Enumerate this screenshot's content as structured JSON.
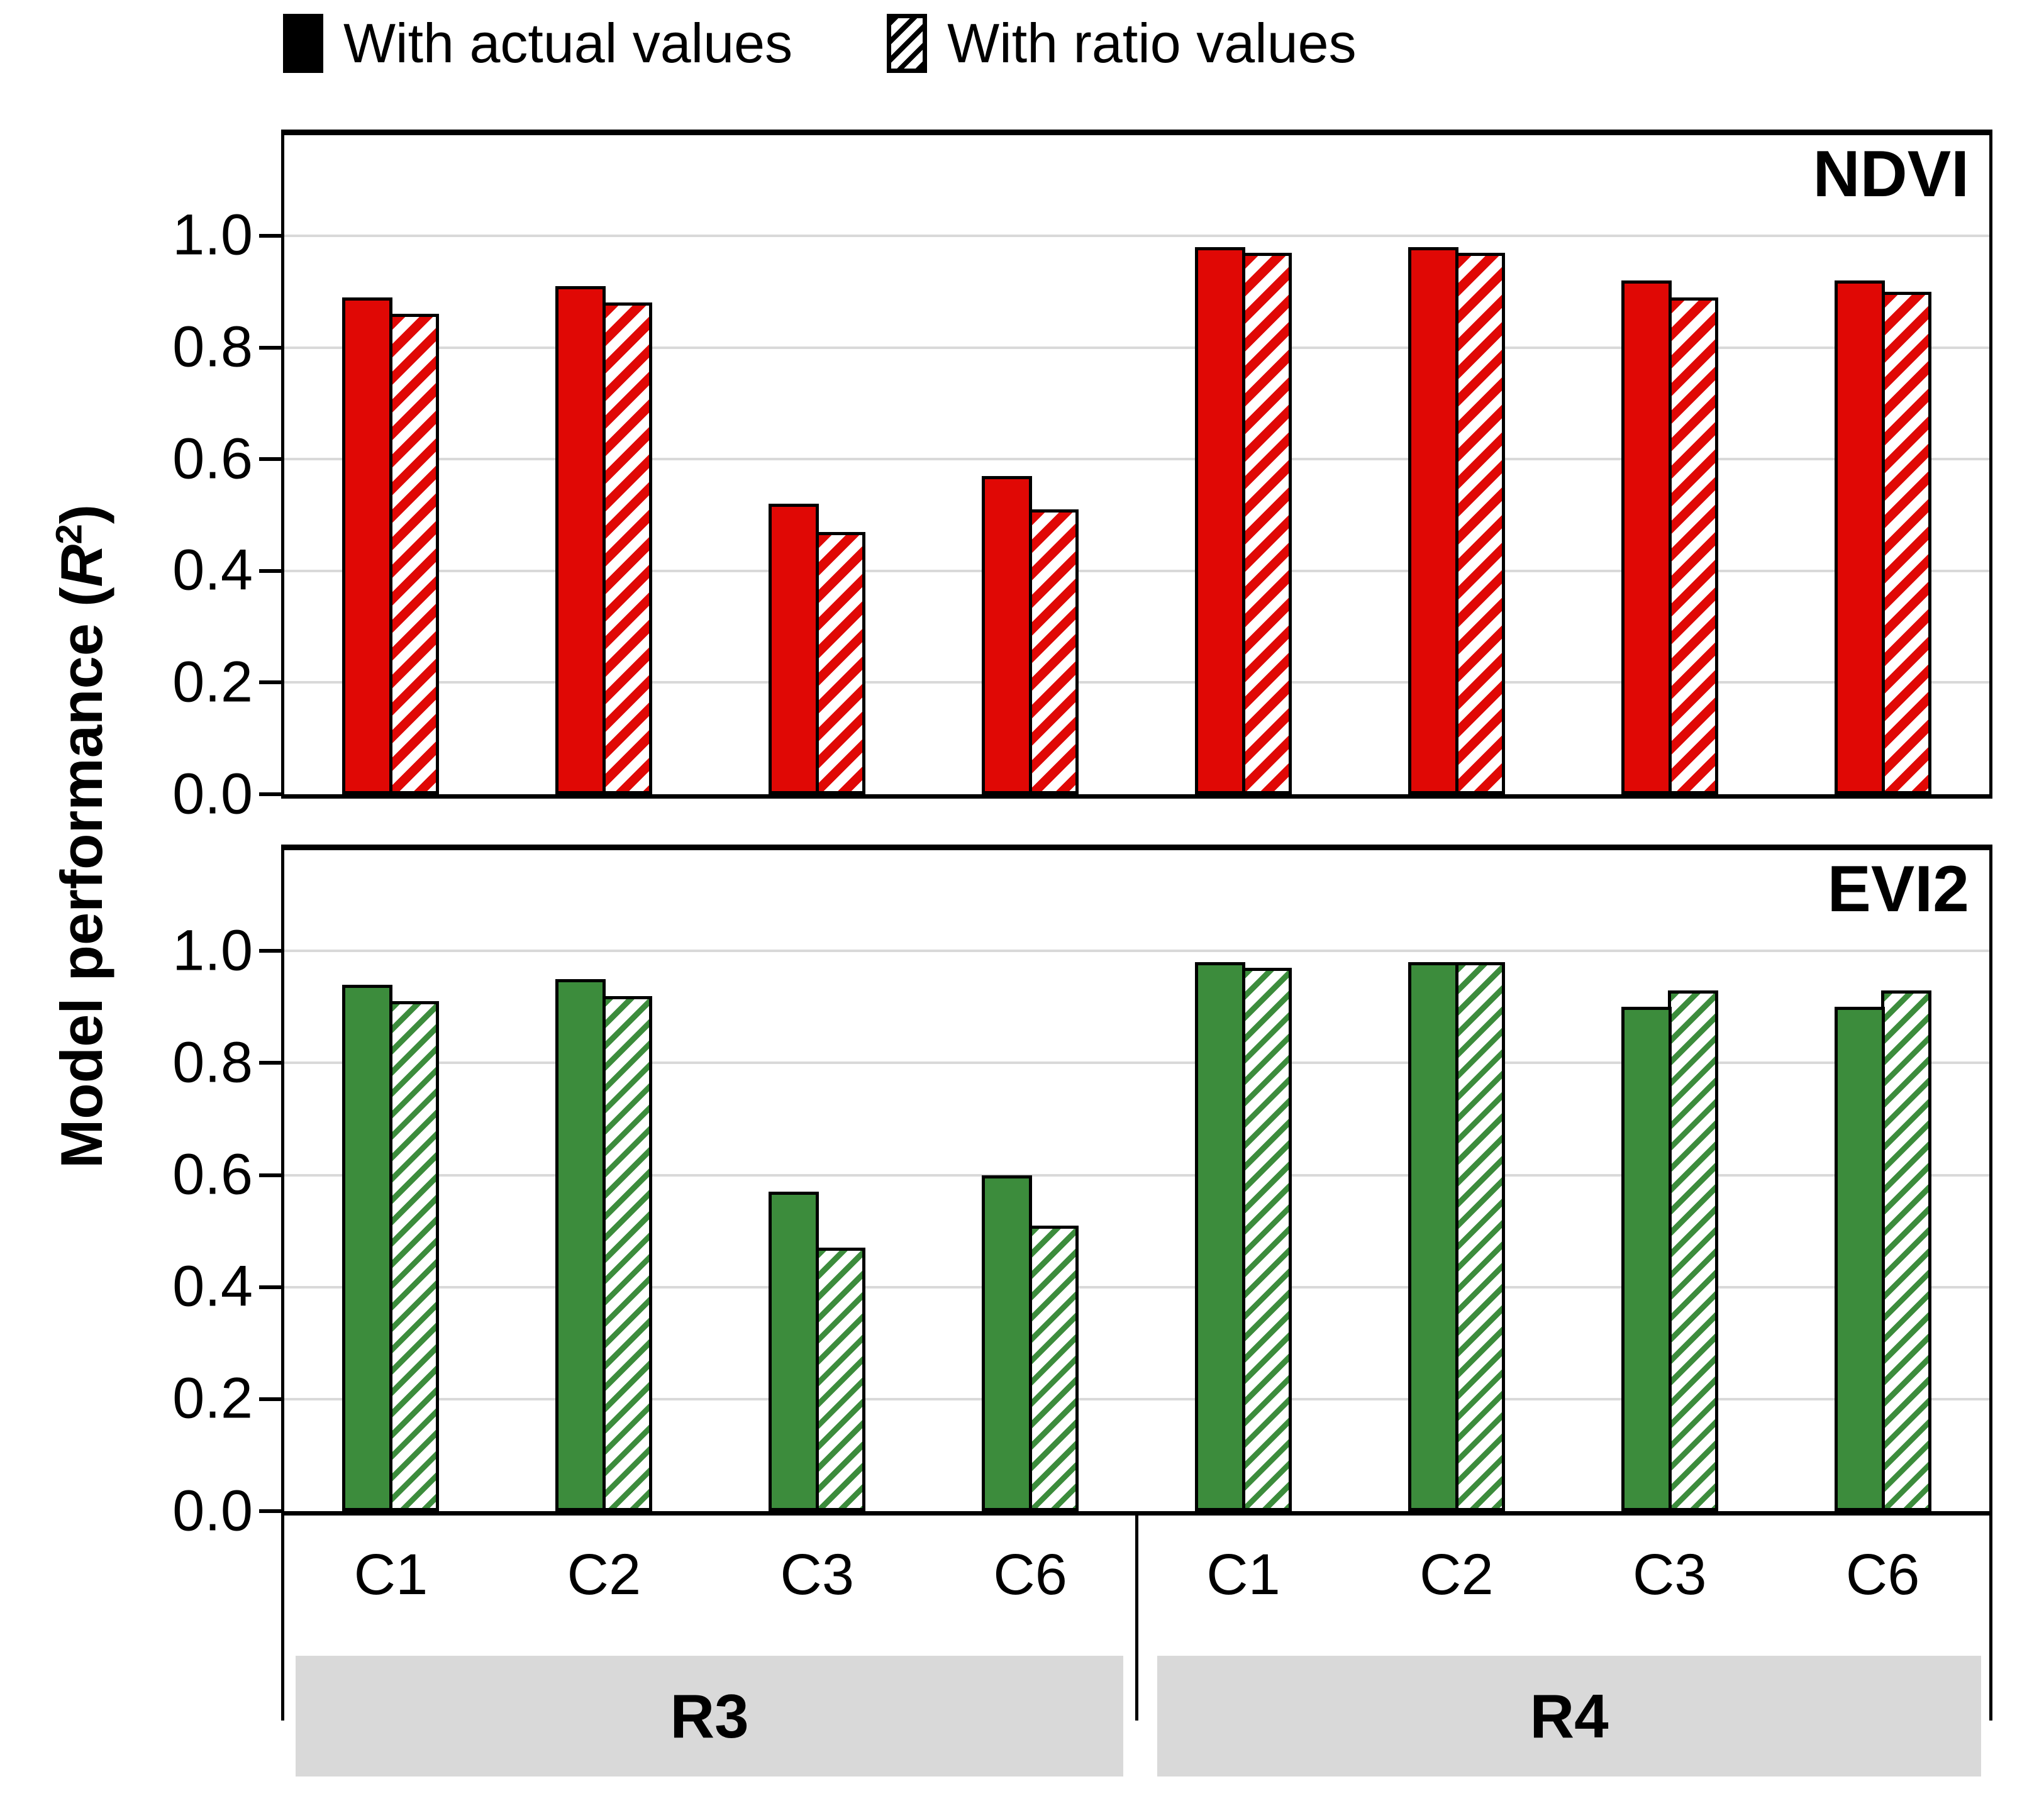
{
  "legend": {
    "items": [
      {
        "label": "With actual values",
        "swatch": "black-solid-square"
      },
      {
        "label": "With ratio values",
        "swatch": "black-hatched-square"
      }
    ]
  },
  "y_axis": {
    "label_prefix": "Model performance (",
    "label_symbol": "R",
    "label_superscript": "2",
    "label_suffix": ")"
  },
  "x_axis": {
    "labels": [
      "C1",
      "C2",
      "C3",
      "C6",
      "C1",
      "C2",
      "C3",
      "C6"
    ],
    "regions": [
      {
        "label": "R3"
      },
      {
        "label": "R4"
      }
    ]
  },
  "style_colors": {
    "ndvi_bar": "#e00805",
    "evi2_bar": "#3c8c3c",
    "gridline": "#d9d9d9",
    "region_box": "#d9d9d9",
    "axis": "#000000"
  },
  "chart_data": [
    {
      "type": "bar",
      "title": "NDVI",
      "categories": [
        "R3-C1",
        "R3-C2",
        "R3-C3",
        "R3-C6",
        "R4-C1",
        "R4-C2",
        "R4-C3",
        "R4-C6"
      ],
      "series": [
        {
          "name": "With actual values",
          "pattern": "solid",
          "values": [
            0.89,
            0.91,
            0.52,
            0.57,
            0.98,
            0.98,
            0.92,
            0.92
          ]
        },
        {
          "name": "With ratio values",
          "pattern": "hatched",
          "values": [
            0.86,
            0.88,
            0.47,
            0.51,
            0.97,
            0.97,
            0.89,
            0.9
          ]
        }
      ],
      "color": "#e00805",
      "hatch": {
        "stripe": 15,
        "period": 31
      },
      "ylabel": "Model performance (R2)",
      "ylim": [
        0,
        1.18
      ],
      "yticks": [
        0.0,
        0.2,
        0.4,
        0.6,
        0.8,
        1.0
      ],
      "grid": true,
      "legend_position": "top"
    },
    {
      "type": "bar",
      "title": "EVI2",
      "categories": [
        "R3-C1",
        "R3-C2",
        "R3-C3",
        "R3-C6",
        "R4-C1",
        "R4-C2",
        "R4-C3",
        "R4-C6"
      ],
      "series": [
        {
          "name": "With actual values",
          "pattern": "solid",
          "values": [
            0.94,
            0.95,
            0.57,
            0.6,
            0.98,
            0.98,
            0.9,
            0.9
          ]
        },
        {
          "name": "With ratio values",
          "pattern": "hatched",
          "values": [
            0.91,
            0.92,
            0.47,
            0.51,
            0.97,
            0.98,
            0.93,
            0.93
          ]
        }
      ],
      "color": "#3c8c3c",
      "hatch": {
        "stripe": 9,
        "period": 24
      },
      "ylabel": "Model performance (R2)",
      "ylim": [
        0,
        1.18
      ],
      "yticks": [
        0.0,
        0.2,
        0.4,
        0.6,
        0.8,
        1.0
      ],
      "grid": true,
      "legend_position": "top"
    }
  ]
}
